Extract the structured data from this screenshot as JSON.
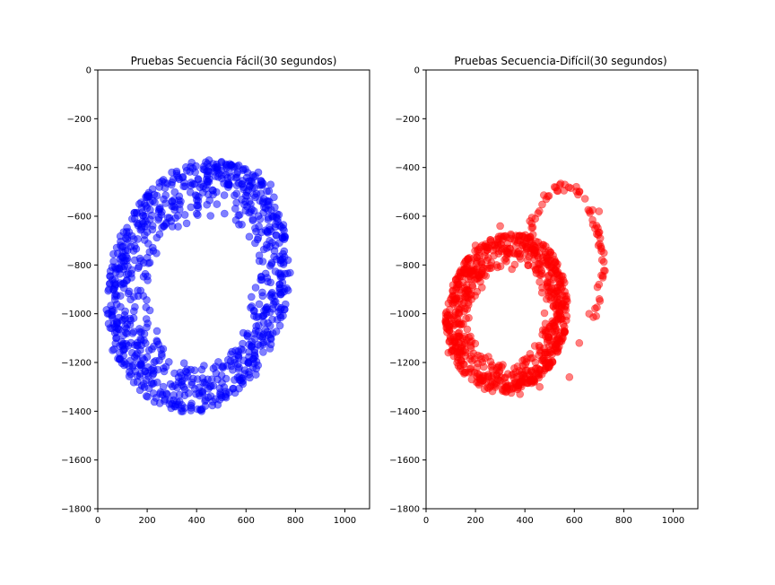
{
  "chart_data": [
    {
      "type": "scatter",
      "title": "Pruebas Secuencia Fácil(30 segundos)",
      "xlabel": "",
      "ylabel": "",
      "xlim": [
        0,
        1100
      ],
      "ylim": [
        -1800,
        0
      ],
      "xticks": [
        0,
        200,
        400,
        600,
        800,
        1000
      ],
      "yticks": [
        0,
        -200,
        -400,
        -600,
        -800,
        -1000,
        -1200,
        -1400,
        -1600,
        -1800
      ],
      "grid": false,
      "series": [
        {
          "color": "#0000ff",
          "opacity": 0.5,
          "shape": "ellipse-ring",
          "outer_ring": {
            "cx": 430,
            "cy": -890,
            "rx_left": 390,
            "rx_right": 340,
            "ry_top": 520,
            "ry_bottom": 520,
            "tilt_deg": -12
          },
          "inner_hole": {
            "cx": 420,
            "cy": -980,
            "rx": 180,
            "ry": 230
          },
          "point_count": 900,
          "sample_points": [
            [
              450,
              -370
            ],
            [
              500,
              -380
            ],
            [
              650,
              -420
            ],
            [
              700,
              -470
            ],
            [
              750,
              -650
            ],
            [
              770,
              -780
            ],
            [
              740,
              -920
            ],
            [
              700,
              -1100
            ],
            [
              640,
              -1250
            ],
            [
              520,
              -1330
            ],
            [
              420,
              -1400
            ],
            [
              300,
              -1370
            ],
            [
              160,
              -1280
            ],
            [
              60,
              -1150
            ],
            [
              40,
              -1000
            ],
            [
              70,
              -860
            ],
            [
              120,
              -680
            ],
            [
              200,
              -520
            ],
            [
              300,
              -420
            ],
            [
              380,
              -380
            ]
          ]
        }
      ]
    },
    {
      "type": "scatter",
      "title": "Pruebas Secuencia-Difícil(30 segundos)",
      "xlabel": "",
      "ylabel": "",
      "xlim": [
        0,
        1100
      ],
      "ylim": [
        -1800,
        0
      ],
      "xticks": [
        0,
        200,
        400,
        600,
        800,
        1000
      ],
      "yticks": [
        0,
        -200,
        -400,
        -600,
        -800,
        -1000,
        -1200,
        -1400,
        -1600,
        -1800
      ],
      "grid": false,
      "series": [
        {
          "color": "#ff0000",
          "opacity": 0.5,
          "shape": "ellipse-ring",
          "outer_ring": {
            "cx": 340,
            "cy": -1010,
            "rx_left": 260,
            "rx_right": 230,
            "ry_top": 340,
            "ry_bottom": 320,
            "tilt_deg": -8
          },
          "inner_hole": {
            "cx": 350,
            "cy": -1000,
            "rx": 90,
            "ry": 170
          },
          "outer_arc": {
            "cx": 560,
            "cy": -800,
            "rx": 150,
            "ry": 320,
            "from_deg": 160,
            "to_deg": -40
          },
          "point_count": 800,
          "sample_points": [
            [
              520,
              -480
            ],
            [
              620,
              -500
            ],
            [
              700,
              -580
            ],
            [
              720,
              -750
            ],
            [
              700,
              -880
            ],
            [
              660,
              -1000
            ],
            [
              620,
              -1120
            ],
            [
              580,
              -1260
            ],
            [
              460,
              -1300
            ],
            [
              380,
              -1330
            ],
            [
              260,
              -1300
            ],
            [
              160,
              -1240
            ],
            [
              90,
              -1160
            ],
            [
              80,
              -1000
            ],
            [
              120,
              -860
            ],
            [
              200,
              -720
            ],
            [
              300,
              -640
            ],
            [
              420,
              -620
            ]
          ]
        }
      ]
    }
  ]
}
